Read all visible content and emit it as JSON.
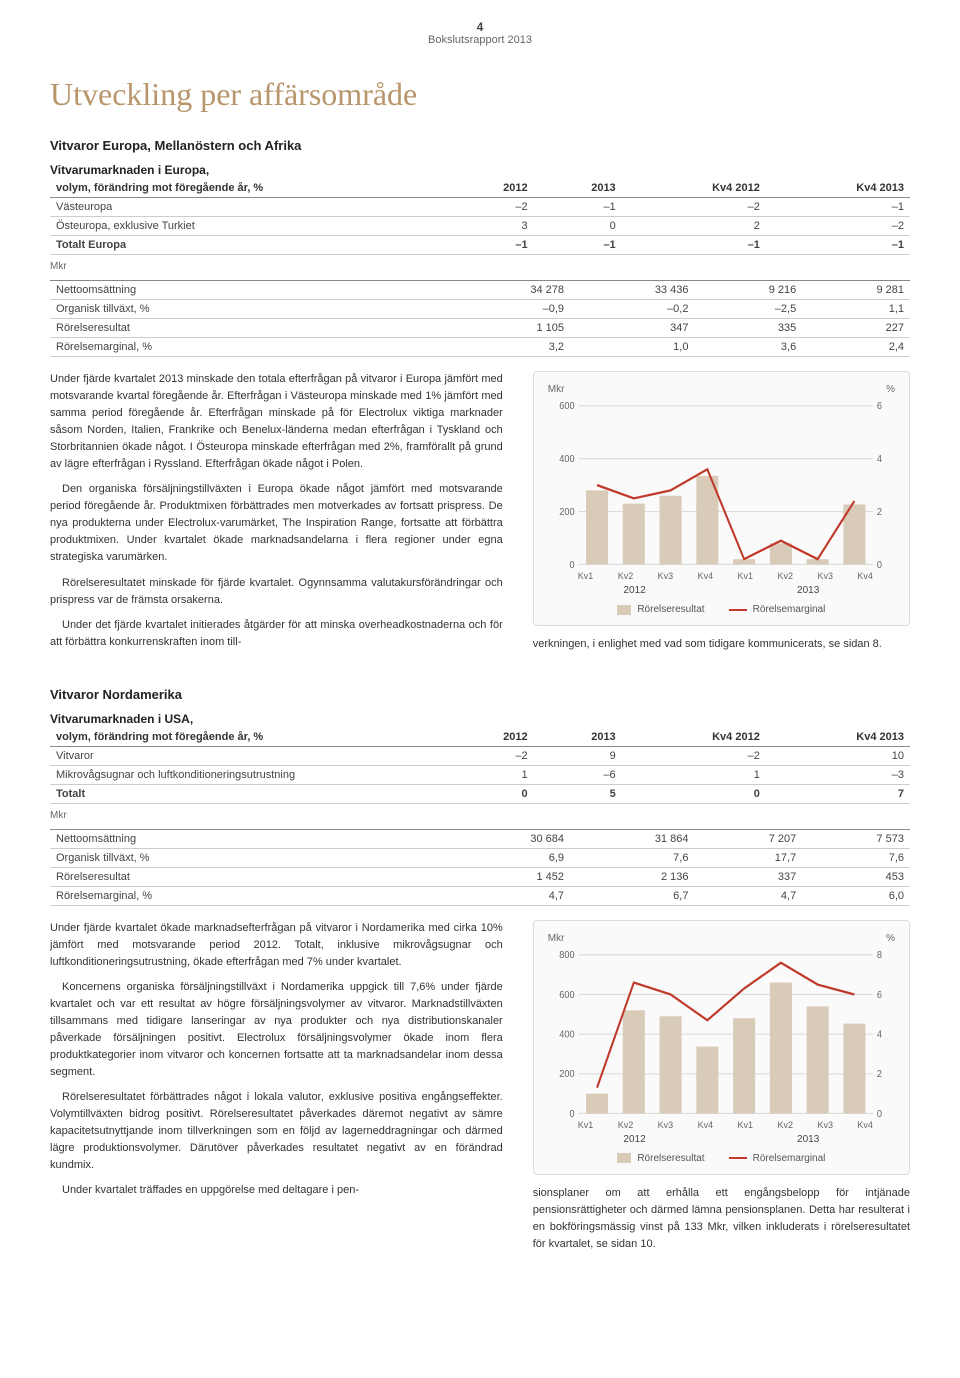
{
  "page_number": "4",
  "report_title": "Bokslutsrapport 2013",
  "main_heading": "Utveckling per affärsområde",
  "section1": {
    "subtitle": "Vitvaror Europa, Mellanöstern och Afrika",
    "table1": {
      "title_line1": "Vitvarumarknaden i Europa,",
      "title_line2": "volym, förändring mot föregående år, %",
      "headers": [
        "2012",
        "2013",
        "Kv4 2012",
        "Kv4 2013"
      ],
      "rows": [
        {
          "label": "Västeuropa",
          "vals": [
            "–2",
            "–1",
            "–2",
            "–1"
          ]
        },
        {
          "label": "Östeuropa, exklusive Turkiet",
          "vals": [
            "3",
            "0",
            "2",
            "–2"
          ]
        },
        {
          "label": "Totalt Europa",
          "vals": [
            "–1",
            "–1",
            "–1",
            "–1"
          ],
          "bold": true
        }
      ]
    },
    "mkr": "Mkr",
    "table2": {
      "rows": [
        {
          "label": "Nettoomsättning",
          "vals": [
            "34 278",
            "33 436",
            "9 216",
            "9 281"
          ]
        },
        {
          "label": "Organisk tillväxt, %",
          "vals": [
            "–0,9",
            "–0,2",
            "–2,5",
            "1,1"
          ]
        },
        {
          "label": "Rörelseresultat",
          "vals": [
            "1 105",
            "347",
            "335",
            "227"
          ]
        },
        {
          "label": "Rörelsemarginal, %",
          "vals": [
            "3,2",
            "1,0",
            "3,6",
            "2,4"
          ]
        }
      ]
    },
    "body_paragraphs": [
      "Under fjärde kvartalet 2013 minskade den totala efterfrågan på vitvaror i Europa jämfört med motsvarande kvartal föregående år. Efterfrågan i Västeuropa minskade med 1% jämfört med samma period föregående år. Efterfrågan minskade på för Electrolux viktiga marknader såsom Norden, Italien, Frankrike och Benelux-länderna medan efterfrågan i Tyskland och Storbritannien ökade något. I Östeuropa minskade efterfrågan med 2%, framförallt på grund av lägre efterfrågan i Ryssland. Efterfrågan ökade något i Polen.",
      "Den organiska försäljningstillväxten i Europa ökade något jämfört med motsvarande period föregående år. Produktmixen förbättrades men motverkades av fortsatt prispress. De nya produkterna under Electrolux-varumärket, The Inspiration Range, fortsatte att förbättra produktmixen. Under kvartalet ökade marknadsandelarna i flera regioner under egna strategiska varumärken.",
      "Rörelseresultatet minskade för fjärde kvartalet. Ogynnsamma valutakursförändringar och prispress var de främsta orsakerna.",
      "Under det fjärde kvartalet initierades åtgärder för att minska overheadkostnaderna och för att förbättra konkurrenskraften inom till-"
    ],
    "body_right": "verkningen, i enlighet med vad som tidigare kommunicerats, se sidan 8.",
    "chart": {
      "left_axis_label": "Mkr",
      "right_axis_label": "%",
      "left_ticks": [
        "600",
        "400",
        "200",
        "0"
      ],
      "right_ticks": [
        "6",
        "4",
        "2",
        "0"
      ],
      "bar_values": [
        280,
        230,
        260,
        335,
        20,
        80,
        20,
        227
      ],
      "line_values": [
        3.0,
        2.5,
        2.8,
        3.6,
        0.2,
        0.9,
        0.2,
        2.4
      ],
      "left_max": 600,
      "right_max": 6,
      "bar_color": "#d8cbb8",
      "line_color": "#c0392b",
      "grid_color": "#dcdcdc",
      "xlabels": [
        "Kv1",
        "Kv2",
        "Kv3",
        "Kv4",
        "Kv1",
        "Kv2",
        "Kv3",
        "Kv4"
      ],
      "years": [
        "2012",
        "2013"
      ],
      "legend_bar": "Rörelseresultat",
      "legend_line": "Rörelsemarginal"
    }
  },
  "section2": {
    "subtitle": "Vitvaror Nordamerika",
    "table1": {
      "title_line1": "Vitvarumarknaden i USA,",
      "title_line2": "volym, förändring mot föregående år, %",
      "headers": [
        "2012",
        "2013",
        "Kv4 2012",
        "Kv4 2013"
      ],
      "rows": [
        {
          "label": "Vitvaror",
          "vals": [
            "–2",
            "9",
            "–2",
            "10"
          ]
        },
        {
          "label": "Mikrovågsugnar och luftkonditioneringsutrustning",
          "vals": [
            "1",
            "–6",
            "1",
            "–3"
          ]
        },
        {
          "label": "Totalt",
          "vals": [
            "0",
            "5",
            "0",
            "7"
          ],
          "bold": true
        }
      ]
    },
    "mkr": "Mkr",
    "table2": {
      "rows": [
        {
          "label": "Nettoomsättning",
          "vals": [
            "30 684",
            "31 864",
            "7 207",
            "7 573"
          ]
        },
        {
          "label": "Organisk tillväxt, %",
          "vals": [
            "6,9",
            "7,6",
            "17,7",
            "7,6"
          ]
        },
        {
          "label": "Rörelseresultat",
          "vals": [
            "1 452",
            "2 136",
            "337",
            "453"
          ]
        },
        {
          "label": "Rörelsemarginal, %",
          "vals": [
            "4,7",
            "6,7",
            "4,7",
            "6,0"
          ]
        }
      ]
    },
    "body_paragraphs": [
      "Under fjärde kvartalet ökade marknadsefterfrågan på vitvaror i Nordamerika med cirka 10% jämfört med motsvarande period 2012. Totalt, inklusive mikrovågsugnar och luftkonditioneringsutrustning, ökade efterfrågan med 7% under kvartalet.",
      "Koncernens organiska försäljningstillväxt i Nordamerika uppgick till 7,6% under fjärde kvartalet och var ett resultat av högre försäljningsvolymer av vitvaror. Marknadstillväxten tillsammans med tidigare lanseringar av nya produkter och nya distributionskanaler påverkade försäljningen positivt. Electrolux försäljningsvolymer ökade inom flera produktkategorier inom vitvaror och koncernen fortsatte att ta marknadsandelar inom dessa segment.",
      "Rörelseresultatet förbättrades något i lokala valutor, exklusive positiva engångseffekter. Volymtillväxten bidrog positivt. Rörelseresultatet påverkades däremot negativt av sämre kapacitetsutnyttjande inom tillverkningen som en följd av lagerneddragningar och därmed lägre produktionsvolymer. Därutöver påverkades resultatet negativt av en förändrad kundmix.",
      "Under kvartalet träffades en uppgörelse med deltagare i pen-"
    ],
    "body_right": "sionsplaner om att erhålla ett engångsbelopp för intjänade pensionsrättigheter och därmed lämna pensionsplanen. Detta har resulterat i en bokföringsmässig vinst på 133 Mkr, vilken inkluderats i rörelseresultatet för kvartalet, se sidan 10.",
    "chart": {
      "left_axis_label": "Mkr",
      "right_axis_label": "%",
      "left_ticks": [
        "800",
        "600",
        "400",
        "200",
        "0"
      ],
      "right_ticks": [
        "8",
        "6",
        "4",
        "2",
        "0"
      ],
      "bar_values": [
        100,
        520,
        490,
        337,
        480,
        660,
        540,
        453
      ],
      "line_values": [
        1.3,
        6.6,
        6.0,
        4.7,
        6.3,
        7.6,
        6.5,
        6.0
      ],
      "left_max": 800,
      "right_max": 8,
      "bar_color": "#d8cbb8",
      "line_color": "#c0392b",
      "grid_color": "#dcdcdc",
      "xlabels": [
        "Kv1",
        "Kv2",
        "Kv3",
        "Kv4",
        "Kv1",
        "Kv2",
        "Kv3",
        "Kv4"
      ],
      "years": [
        "2012",
        "2013"
      ],
      "legend_bar": "Rörelseresultat",
      "legend_line": "Rörelsemarginal"
    }
  }
}
